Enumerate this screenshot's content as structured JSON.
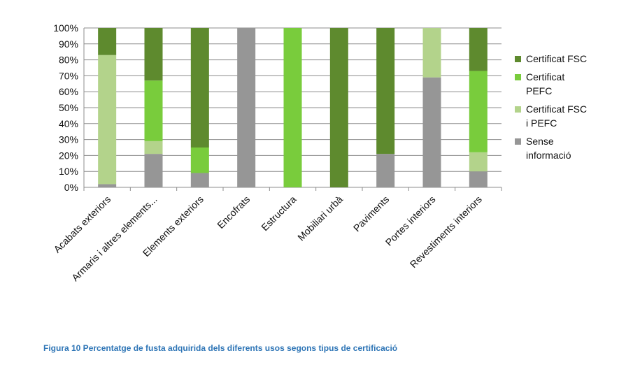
{
  "chart_data": {
    "type": "bar",
    "stacked": true,
    "percent": true,
    "categories": [
      "Acabats exteriors",
      "Armaris i altres elements...",
      "Elements exteriors",
      "Encofrats",
      "Estructura",
      "Mobiliari urbà",
      "Paviments",
      "Portes interiors",
      "Revestiments interiors"
    ],
    "series": [
      {
        "name": "Sense informació",
        "color": "#969696",
        "values": [
          2,
          21,
          9,
          100,
          0,
          0,
          21,
          69,
          10
        ]
      },
      {
        "name": "Certificat FSC i PEFC",
        "color": "#b3d38b",
        "values": [
          81,
          8,
          0,
          0,
          0,
          0,
          0,
          31,
          12
        ]
      },
      {
        "name": "Certificat PEFC",
        "color": "#79cc3c",
        "values": [
          0,
          38,
          16,
          0,
          100,
          0,
          0,
          0,
          51
        ]
      },
      {
        "name": "Certificat FSC",
        "color": "#5e8a2e",
        "values": [
          17,
          33,
          75,
          0,
          0,
          100,
          79,
          0,
          27
        ]
      }
    ],
    "legend_order": [
      "Certificat FSC",
      "Certificat PEFC",
      "Certificat FSC i PEFC",
      "Sense informació"
    ],
    "ylim": [
      0,
      100
    ],
    "yticks": [
      "0%",
      "10%",
      "20%",
      "30%",
      "40%",
      "50%",
      "60%",
      "70%",
      "80%",
      "90%",
      "100%"
    ],
    "grid": true,
    "legend_position": "right"
  },
  "caption": "Figura 10 Percentatge de fusta adquirida dels diferents usos segons tipus de certificació"
}
